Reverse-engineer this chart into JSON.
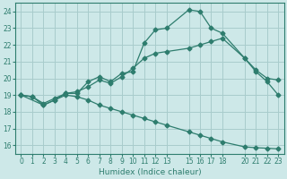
{
  "xlabel": "Humidex (Indice chaleur)",
  "bg_color": "#cde8e8",
  "grid_color": "#a8cccc",
  "line_color": "#2e7d6e",
  "xlim": [
    -0.5,
    23.5
  ],
  "ylim": [
    15.5,
    24.5
  ],
  "xticks": [
    0,
    1,
    2,
    3,
    4,
    5,
    6,
    7,
    8,
    9,
    10,
    11,
    12,
    13,
    15,
    16,
    17,
    18,
    20,
    21,
    22,
    23
  ],
  "yticks": [
    16,
    17,
    18,
    19,
    20,
    21,
    22,
    23,
    24
  ],
  "curve1_x": [
    0,
    1,
    2,
    3,
    4,
    5,
    6,
    7,
    8,
    9,
    10,
    11,
    12,
    13,
    15,
    16,
    17,
    18,
    20,
    21,
    22,
    23
  ],
  "curve1_y": [
    19.0,
    18.9,
    18.4,
    18.7,
    19.1,
    19.1,
    19.8,
    20.1,
    19.8,
    20.3,
    20.4,
    22.1,
    22.9,
    23.0,
    24.1,
    24.0,
    23.0,
    22.7,
    21.2,
    20.4,
    19.8,
    19.0
  ],
  "curve2_x": [
    0,
    1,
    2,
    3,
    4,
    5,
    6,
    7,
    8,
    9,
    10,
    11,
    12,
    13,
    15,
    16,
    17,
    18,
    20,
    21,
    22,
    23
  ],
  "curve2_y": [
    19.0,
    18.9,
    18.5,
    18.8,
    19.1,
    19.2,
    19.5,
    19.9,
    19.7,
    20.1,
    20.6,
    21.2,
    21.5,
    21.6,
    21.8,
    22.0,
    22.2,
    22.4,
    21.2,
    20.5,
    20.0,
    19.9
  ],
  "curve3_x": [
    0,
    2,
    3,
    4,
    5,
    6,
    7,
    8,
    9,
    10,
    11,
    12,
    13,
    15,
    16,
    17,
    18,
    20,
    21,
    22,
    23
  ],
  "curve3_y": [
    19.0,
    18.4,
    18.7,
    19.0,
    18.9,
    18.7,
    18.4,
    18.2,
    18.0,
    17.8,
    17.6,
    17.4,
    17.2,
    16.8,
    16.6,
    16.4,
    16.2,
    15.9,
    15.85,
    15.82,
    15.78
  ],
  "marker": "D",
  "marker_size": 2.5
}
